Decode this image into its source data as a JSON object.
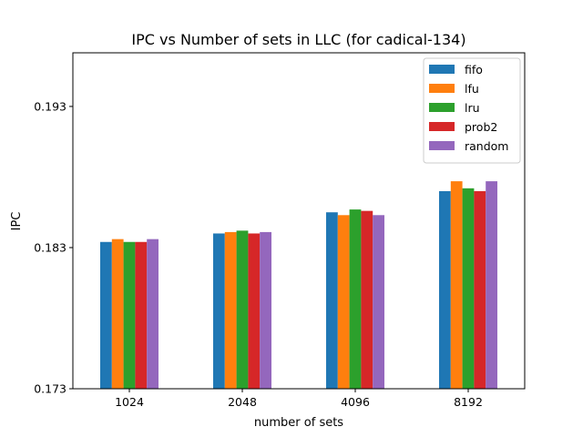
{
  "chart_data": {
    "type": "bar",
    "title": "IPC vs Number of sets in LLC (for cadical-134)",
    "xlabel": "number of sets",
    "ylabel": "IPC",
    "categories": [
      "1024",
      "2048",
      "4096",
      "8192"
    ],
    "yticks": [
      0.173,
      0.183,
      0.193
    ],
    "ytick_labels": [
      "0.173",
      "0.183",
      "0.193"
    ],
    "ylim": [
      0.173,
      0.1968
    ],
    "grid": false,
    "legend_position": "top-right",
    "series": [
      {
        "name": "fifo",
        "color": "#1f77b4",
        "values": [
          0.1834,
          0.184,
          0.1855,
          0.187
        ]
      },
      {
        "name": "lfu",
        "color": "#ff7f0e",
        "values": [
          0.1836,
          0.1841,
          0.1853,
          0.1877
        ]
      },
      {
        "name": "lru",
        "color": "#2ca02c",
        "values": [
          0.1834,
          0.1842,
          0.1857,
          0.1872
        ]
      },
      {
        "name": "prob2",
        "color": "#d62728",
        "values": [
          0.1834,
          0.184,
          0.1856,
          0.187
        ]
      },
      {
        "name": "random",
        "color": "#9467bd",
        "values": [
          0.1836,
          0.1841,
          0.1853,
          0.1877
        ]
      }
    ]
  }
}
